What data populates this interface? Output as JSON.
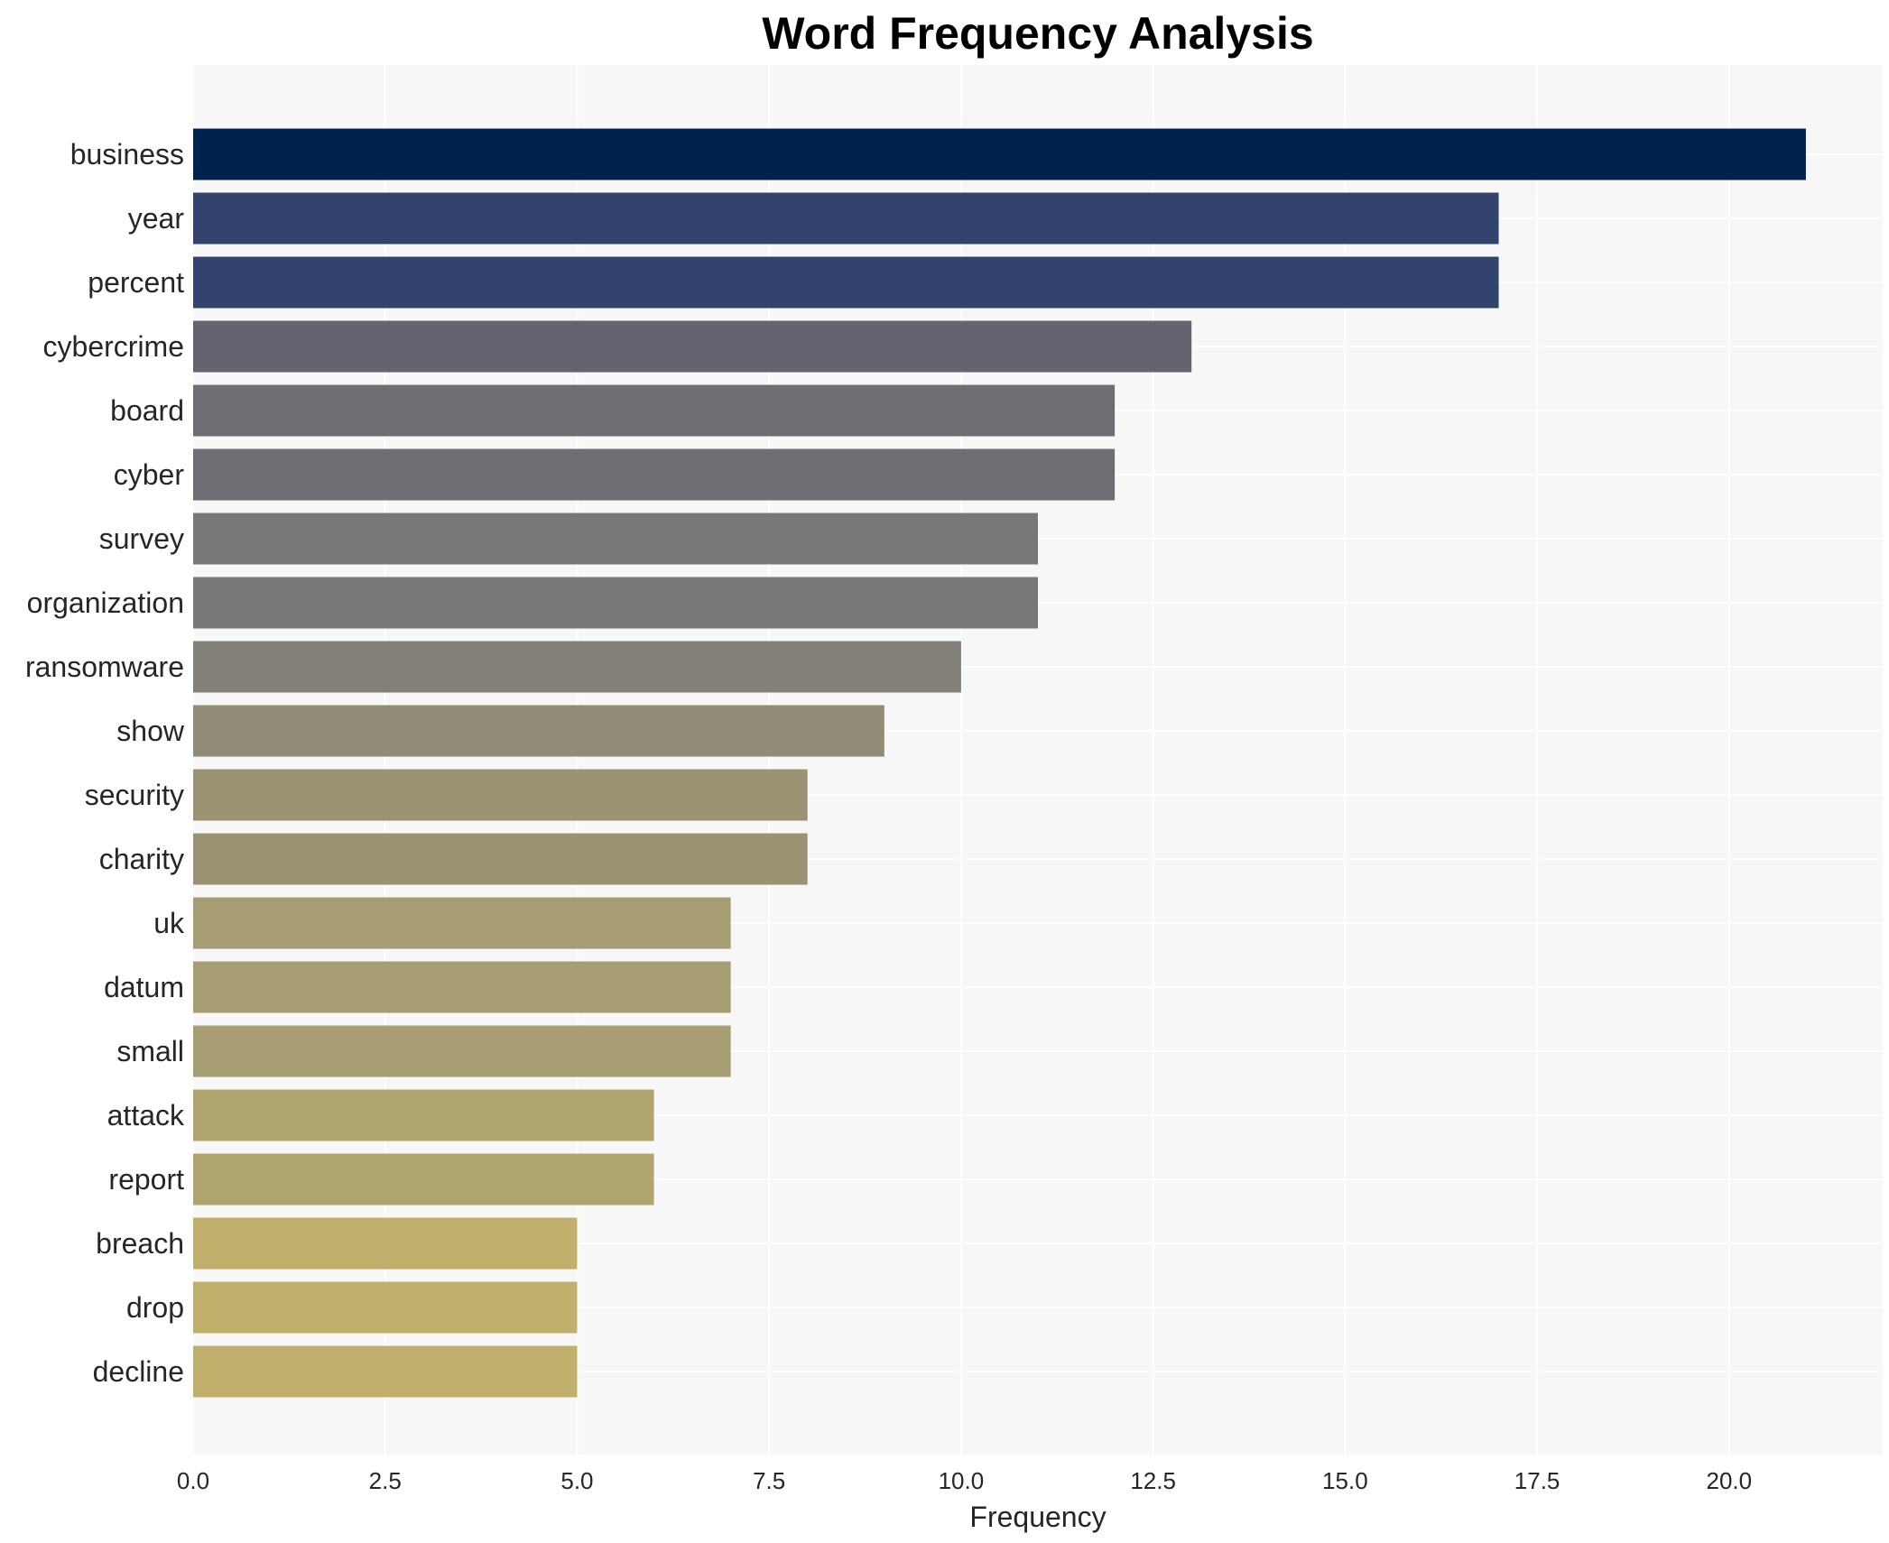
{
  "chart_data": {
    "type": "bar",
    "orientation": "horizontal",
    "title": "Word Frequency Analysis",
    "xlabel": "Frequency",
    "ylabel": "",
    "categories": [
      "business",
      "year",
      "percent",
      "cybercrime",
      "board",
      "cyber",
      "survey",
      "organization",
      "ransomware",
      "show",
      "security",
      "charity",
      "uk",
      "datum",
      "small",
      "attack",
      "report",
      "breach",
      "drop",
      "decline"
    ],
    "values": [
      21,
      17,
      17,
      13,
      12,
      12,
      11,
      11,
      10,
      9,
      8,
      8,
      7,
      7,
      7,
      6,
      6,
      5,
      5,
      5
    ],
    "colors": [
      "#00224e",
      "#32446d",
      "#32446d",
      "#63646f",
      "#6d6e73",
      "#6d6e73",
      "#787877",
      "#787877",
      "#838079",
      "#908a77",
      "#9b9374",
      "#9b9374",
      "#a69d75",
      "#a69d75",
      "#a69d75",
      "#b0a46f",
      "#b0a46f",
      "#c0af6a",
      "#c0af6a",
      "#c0af6a"
    ],
    "xlim": [
      0,
      22
    ],
    "xticks": [
      0.0,
      2.5,
      5.0,
      7.5,
      10.0,
      12.5,
      15.0,
      17.5,
      20.0
    ],
    "xtick_labels": [
      "0.0",
      "2.5",
      "5.0",
      "7.5",
      "10.0",
      "12.5",
      "15.0",
      "17.5",
      "20.0"
    ],
    "grid": true,
    "legend": "none",
    "background": "#f7f7f7"
  }
}
